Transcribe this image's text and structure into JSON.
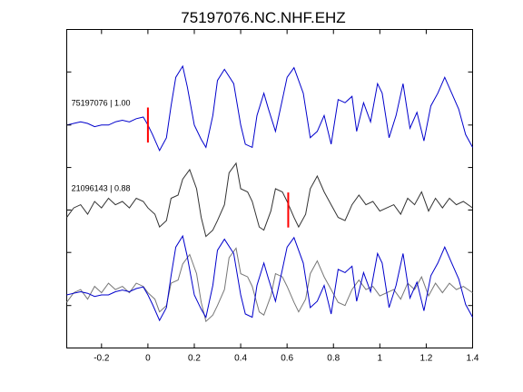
{
  "chart_data": {
    "type": "line",
    "title": "75197076.NC.NHF.EHZ",
    "xlabel": "",
    "ylabel": "",
    "xlim": [
      -0.35,
      1.4
    ],
    "ylim": [
      0,
      1
    ],
    "x_ticks": [
      -0.2,
      0,
      0.2,
      0.4,
      0.6,
      0.8,
      1,
      1.2,
      1.4
    ],
    "x_tick_labels": [
      "-0.2",
      "0",
      "0.2",
      "0.4",
      "0.6",
      "0.8",
      "1",
      "1.2",
      "1.4"
    ],
    "y_ticks": [
      0.0,
      0.1333,
      0.3,
      0.4333,
      0.5667,
      0.7,
      0.8667
    ],
    "grid": false,
    "legend": "none",
    "colors": {
      "reference": "#0000cc",
      "match": "#333333",
      "overlay_match": "#777777",
      "pick": "#ff0000"
    },
    "traces": [
      {
        "label": "75197076 | 1.00",
        "label_x": -0.33,
        "color": "#0000cc",
        "baseline": 0.7,
        "pick_x": 0.0,
        "x": [
          -0.35,
          -0.32,
          -0.29,
          -0.26,
          -0.23,
          -0.2,
          -0.17,
          -0.14,
          -0.11,
          -0.08,
          -0.05,
          -0.02,
          0.0,
          0.02,
          0.05,
          0.08,
          0.1,
          0.12,
          0.15,
          0.17,
          0.2,
          0.23,
          0.25,
          0.28,
          0.3,
          0.33,
          0.37,
          0.4,
          0.42,
          0.45,
          0.47,
          0.5,
          0.52,
          0.55,
          0.58,
          0.6,
          0.63,
          0.67,
          0.7,
          0.73,
          0.76,
          0.79,
          0.82,
          0.85,
          0.88,
          0.9,
          0.93,
          0.96,
          0.99,
          1.01,
          1.04,
          1.07,
          1.1,
          1.13,
          1.16,
          1.19,
          1.22,
          1.25,
          1.28,
          1.31,
          1.34,
          1.37,
          1.4
        ],
        "y": [
          0.7,
          0.705,
          0.71,
          0.705,
          0.695,
          0.7,
          0.7,
          0.71,
          0.715,
          0.71,
          0.72,
          0.725,
          0.7,
          0.67,
          0.62,
          0.66,
          0.76,
          0.85,
          0.885,
          0.82,
          0.7,
          0.655,
          0.63,
          0.73,
          0.84,
          0.875,
          0.83,
          0.7,
          0.64,
          0.63,
          0.73,
          0.8,
          0.75,
          0.68,
          0.78,
          0.85,
          0.88,
          0.8,
          0.66,
          0.68,
          0.73,
          0.64,
          0.78,
          0.77,
          0.79,
          0.68,
          0.77,
          0.71,
          0.83,
          0.8,
          0.66,
          0.73,
          0.83,
          0.69,
          0.74,
          0.65,
          0.76,
          0.8,
          0.85,
          0.8,
          0.75,
          0.67,
          0.63
        ]
      },
      {
        "label": "21096143 | 0.88",
        "label_x": -0.33,
        "color": "#333333",
        "baseline": 0.4333,
        "pick_x": 0.605,
        "x": [
          -0.35,
          -0.32,
          -0.29,
          -0.26,
          -0.23,
          -0.2,
          -0.17,
          -0.14,
          -0.11,
          -0.08,
          -0.05,
          -0.02,
          0.0,
          0.03,
          0.05,
          0.08,
          0.1,
          0.13,
          0.15,
          0.18,
          0.21,
          0.23,
          0.25,
          0.28,
          0.3,
          0.33,
          0.35,
          0.38,
          0.4,
          0.43,
          0.45,
          0.48,
          0.5,
          0.53,
          0.55,
          0.58,
          0.6,
          0.63,
          0.65,
          0.68,
          0.7,
          0.73,
          0.76,
          0.79,
          0.82,
          0.85,
          0.88,
          0.91,
          0.94,
          0.97,
          1.0,
          1.03,
          1.06,
          1.09,
          1.12,
          1.15,
          1.18,
          1.21,
          1.24,
          1.27,
          1.3,
          1.33,
          1.36,
          1.4
        ],
        "y": [
          0.41,
          0.44,
          0.45,
          0.42,
          0.46,
          0.44,
          0.47,
          0.45,
          0.46,
          0.44,
          0.47,
          0.46,
          0.44,
          0.42,
          0.38,
          0.4,
          0.47,
          0.48,
          0.53,
          0.56,
          0.5,
          0.41,
          0.35,
          0.37,
          0.4,
          0.45,
          0.55,
          0.58,
          0.5,
          0.49,
          0.46,
          0.38,
          0.37,
          0.43,
          0.5,
          0.49,
          0.46,
          0.41,
          0.38,
          0.42,
          0.5,
          0.54,
          0.49,
          0.45,
          0.41,
          0.4,
          0.45,
          0.48,
          0.45,
          0.46,
          0.43,
          0.44,
          0.45,
          0.42,
          0.47,
          0.45,
          0.49,
          0.43,
          0.47,
          0.44,
          0.47,
          0.45,
          0.46,
          0.44
        ]
      }
    ],
    "overlay": {
      "baseline": 0.1667,
      "series": [
        "75197076 | 1.00",
        "21096143 | 0.88"
      ],
      "colors": [
        "#0000cc",
        "#777777"
      ]
    }
  }
}
